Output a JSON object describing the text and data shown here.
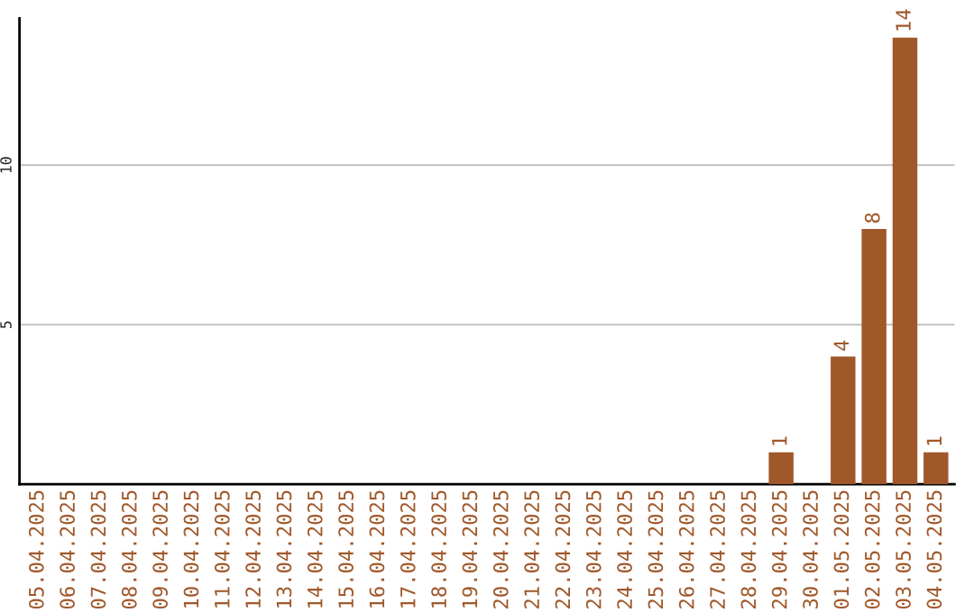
{
  "chart_data": {
    "type": "bar",
    "categories": [
      "05.04.2025",
      "06.04.2025",
      "07.04.2025",
      "08.04.2025",
      "09.04.2025",
      "10.04.2025",
      "11.04.2025",
      "12.04.2025",
      "13.04.2025",
      "14.04.2025",
      "15.04.2025",
      "16.04.2025",
      "17.04.2025",
      "18.04.2025",
      "19.04.2025",
      "20.04.2025",
      "21.04.2025",
      "22.04.2025",
      "23.04.2025",
      "24.04.2025",
      "25.04.2025",
      "26.04.2025",
      "27.04.2025",
      "28.04.2025",
      "29.04.2025",
      "30.04.2025",
      "01.05.2025",
      "02.05.2025",
      "03.05.2025",
      "04.05.2025"
    ],
    "values": [
      0,
      0,
      0,
      0,
      0,
      0,
      0,
      0,
      0,
      0,
      0,
      0,
      0,
      0,
      0,
      0,
      0,
      0,
      0,
      0,
      0,
      0,
      0,
      0,
      1,
      0,
      4,
      8,
      14,
      1
    ],
    "value_labels": [
      null,
      null,
      null,
      null,
      null,
      null,
      null,
      null,
      null,
      null,
      null,
      null,
      null,
      null,
      null,
      null,
      null,
      null,
      null,
      null,
      null,
      null,
      null,
      null,
      "1",
      null,
      "4",
      "8",
      "14",
      "1"
    ],
    "color": "#a0582a",
    "ylim": [
      0,
      14.6
    ],
    "yticks": [
      5,
      10
    ],
    "grid": "y",
    "legend": false
  }
}
